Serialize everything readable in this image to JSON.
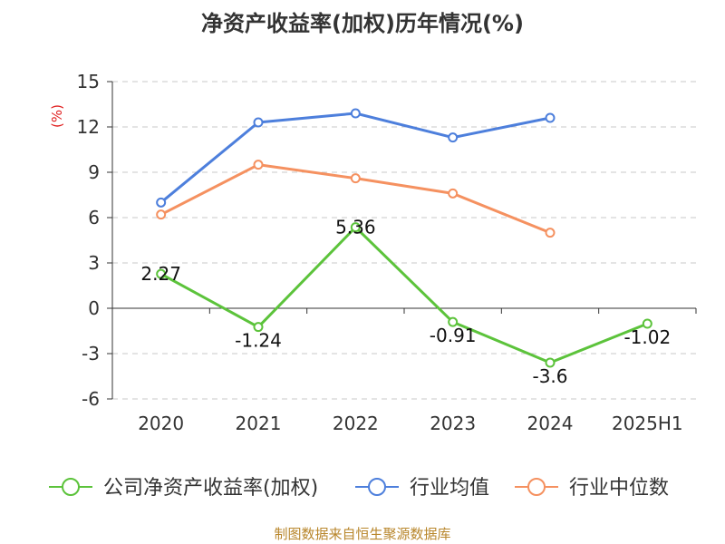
{
  "chart_data": {
    "type": "line",
    "title": "净资产收益率(加权)历年情况(%)",
    "ylabel": "(%)",
    "xlabel": "",
    "categories": [
      "2020",
      "2021",
      "2022",
      "2023",
      "2024",
      "2025H1"
    ],
    "ylim": [
      -6,
      15
    ],
    "yticks": [
      15,
      12,
      9,
      6,
      3,
      0,
      -3,
      -6
    ],
    "grid": true,
    "legend_position": "bottom",
    "series": [
      {
        "name": "公司净资产收益率(加权)",
        "color": "#5cc33b",
        "values": [
          2.27,
          -1.24,
          5.36,
          -0.91,
          -3.6,
          -1.02
        ],
        "labels": [
          "2.27",
          "-1.24",
          "5.36",
          "-0.91",
          "-3.6",
          "-1.02"
        ]
      },
      {
        "name": "行业均值",
        "color": "#4d7fdc",
        "values": [
          7.0,
          12.3,
          12.9,
          11.3,
          12.6,
          null
        ]
      },
      {
        "name": "行业中位数",
        "color": "#f59160",
        "values": [
          6.2,
          9.5,
          8.6,
          7.6,
          5.0,
          null
        ]
      }
    ]
  },
  "footer": {
    "source": "制图数据来自恒生聚源数据库"
  }
}
